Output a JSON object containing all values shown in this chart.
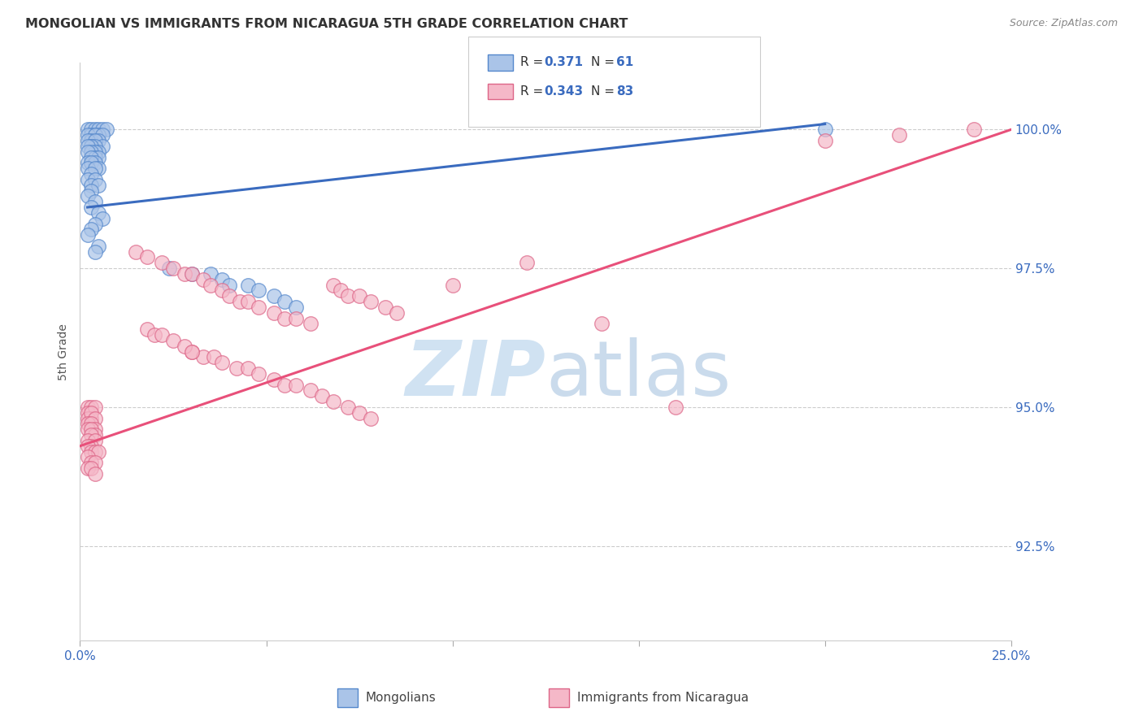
{
  "title": "MONGOLIAN VS IMMIGRANTS FROM NICARAGUA 5TH GRADE CORRELATION CHART",
  "source": "Source: ZipAtlas.com",
  "ylabel": "5th Grade",
  "ytick_labels": [
    "100.0%",
    "97.5%",
    "95.0%",
    "92.5%"
  ],
  "ytick_values": [
    1.0,
    0.975,
    0.95,
    0.925
  ],
  "xlim": [
    0.0,
    0.25
  ],
  "ylim": [
    0.908,
    1.012
  ],
  "blue_color": "#aac4e8",
  "pink_color": "#f5b8c8",
  "blue_line_color": "#3a6bbf",
  "pink_line_color": "#e8507a",
  "blue_dot_edge": "#5588cc",
  "pink_dot_edge": "#dd6688",
  "mongolian_x": [
    0.002,
    0.003,
    0.004,
    0.005,
    0.006,
    0.007,
    0.003,
    0.004,
    0.005,
    0.002,
    0.004,
    0.006,
    0.003,
    0.005,
    0.002,
    0.004,
    0.003,
    0.006,
    0.004,
    0.003,
    0.002,
    0.005,
    0.004,
    0.003,
    0.002,
    0.004,
    0.005,
    0.003,
    0.002,
    0.004,
    0.003,
    0.005,
    0.002,
    0.004,
    0.003,
    0.002,
    0.004,
    0.003,
    0.005,
    0.003,
    0.002,
    0.004,
    0.003,
    0.005,
    0.006,
    0.004,
    0.003,
    0.002,
    0.005,
    0.004,
    0.024,
    0.03,
    0.035,
    0.038,
    0.04,
    0.045,
    0.048,
    0.052,
    0.055,
    0.058,
    0.2
  ],
  "mongolian_y": [
    1.0,
    1.0,
    1.0,
    1.0,
    1.0,
    1.0,
    0.999,
    0.999,
    0.999,
    0.999,
    0.999,
    0.999,
    0.998,
    0.998,
    0.998,
    0.998,
    0.997,
    0.997,
    0.997,
    0.997,
    0.997,
    0.996,
    0.996,
    0.996,
    0.996,
    0.995,
    0.995,
    0.995,
    0.994,
    0.994,
    0.994,
    0.993,
    0.993,
    0.993,
    0.992,
    0.991,
    0.991,
    0.99,
    0.99,
    0.989,
    0.988,
    0.987,
    0.986,
    0.985,
    0.984,
    0.983,
    0.982,
    0.981,
    0.979,
    0.978,
    0.975,
    0.974,
    0.974,
    0.973,
    0.972,
    0.972,
    0.971,
    0.97,
    0.969,
    0.968,
    1.0
  ],
  "nicaragua_x": [
    0.002,
    0.003,
    0.002,
    0.004,
    0.003,
    0.002,
    0.003,
    0.004,
    0.002,
    0.003,
    0.004,
    0.002,
    0.003,
    0.004,
    0.003,
    0.002,
    0.004,
    0.003,
    0.002,
    0.003,
    0.004,
    0.005,
    0.002,
    0.003,
    0.004,
    0.002,
    0.003,
    0.004,
    0.015,
    0.018,
    0.022,
    0.025,
    0.028,
    0.03,
    0.033,
    0.035,
    0.038,
    0.04,
    0.043,
    0.045,
    0.048,
    0.052,
    0.055,
    0.058,
    0.062,
    0.03,
    0.033,
    0.036,
    0.038,
    0.042,
    0.045,
    0.048,
    0.052,
    0.055,
    0.058,
    0.062,
    0.065,
    0.068,
    0.072,
    0.075,
    0.078,
    0.068,
    0.07,
    0.072,
    0.075,
    0.078,
    0.082,
    0.085,
    0.018,
    0.02,
    0.022,
    0.025,
    0.028,
    0.03,
    0.1,
    0.2,
    0.22,
    0.24,
    0.12,
    0.14,
    0.16
  ],
  "nicaragua_y": [
    0.95,
    0.95,
    0.949,
    0.95,
    0.948,
    0.948,
    0.949,
    0.948,
    0.947,
    0.947,
    0.946,
    0.946,
    0.946,
    0.945,
    0.945,
    0.944,
    0.944,
    0.943,
    0.943,
    0.942,
    0.942,
    0.942,
    0.941,
    0.94,
    0.94,
    0.939,
    0.939,
    0.938,
    0.978,
    0.977,
    0.976,
    0.975,
    0.974,
    0.974,
    0.973,
    0.972,
    0.971,
    0.97,
    0.969,
    0.969,
    0.968,
    0.967,
    0.966,
    0.966,
    0.965,
    0.96,
    0.959,
    0.959,
    0.958,
    0.957,
    0.957,
    0.956,
    0.955,
    0.954,
    0.954,
    0.953,
    0.952,
    0.951,
    0.95,
    0.949,
    0.948,
    0.972,
    0.971,
    0.97,
    0.97,
    0.969,
    0.968,
    0.967,
    0.964,
    0.963,
    0.963,
    0.962,
    0.961,
    0.96,
    0.972,
    0.998,
    0.999,
    1.0,
    0.976,
    0.965,
    0.95
  ],
  "blue_trend_x": [
    0.002,
    0.2
  ],
  "blue_trend_y": [
    0.986,
    1.001
  ],
  "pink_trend_x": [
    0.0,
    0.25
  ],
  "pink_trend_y": [
    0.943,
    1.0
  ]
}
